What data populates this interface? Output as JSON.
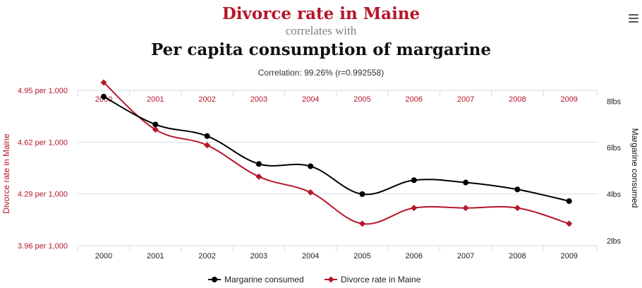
{
  "header": {
    "title_main": "Divorce rate in Maine",
    "title_connector": "correlates with",
    "title_second": "Per capita consumption of margarine",
    "correlation": "Correlation: 99.26% (r=0.992558)"
  },
  "menu": {
    "icon": "hamburger-menu-icon"
  },
  "colors": {
    "red": "#b5162a",
    "black": "#000000",
    "grid": "#d6dde6"
  },
  "chart_data": {
    "type": "line",
    "x": [
      "2000",
      "2001",
      "2002",
      "2003",
      "2004",
      "2005",
      "2006",
      "2007",
      "2008",
      "2009"
    ],
    "series": [
      {
        "name": "Margarine consumed",
        "axis": "right",
        "color": "#000000",
        "marker": "circle",
        "values": [
          8.2,
          7,
          6.5,
          5.3,
          5.2,
          4,
          4.6,
          4.5,
          4.2,
          3.7
        ]
      },
      {
        "name": "Divorce rate in Maine",
        "axis": "left",
        "color": "#b5162a",
        "marker": "diamond",
        "values": [
          5,
          4.7,
          4.6,
          4.4,
          4.3,
          4.1,
          4.2,
          4.2,
          4.2,
          4.1
        ]
      }
    ],
    "left_axis": {
      "label": "Divorce rate in Maine",
      "ticks": [
        "4.95 per 1,000",
        "4.62 per 1,000",
        "4.29 per 1,000",
        "3.96 per 1,000"
      ],
      "tick_values": [
        4.95,
        4.62,
        4.29,
        3.96
      ],
      "range": [
        3.96,
        4.95
      ]
    },
    "right_axis": {
      "label": "Margarine consumed",
      "ticks": [
        "8lbs",
        "6lbs",
        "4lbs",
        "2lbs"
      ],
      "tick_values": [
        8,
        6,
        4,
        2
      ],
      "range": [
        1.78,
        8.47
      ]
    },
    "grid": true,
    "legend_position": "bottom-center"
  }
}
